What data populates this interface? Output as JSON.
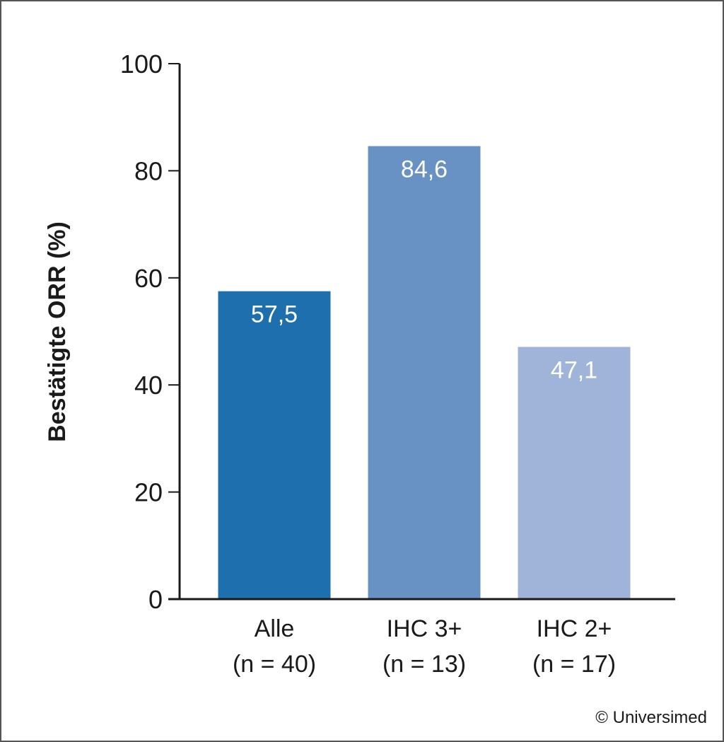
{
  "chart_data": {
    "type": "bar",
    "ylabel": "Bestätigte ORR (%)",
    "xlabel": "",
    "ylim": [
      0,
      100
    ],
    "yticks": [
      0,
      20,
      40,
      60,
      80,
      100
    ],
    "categories": [
      {
        "line1": "Alle",
        "line2": "(n = 40)"
      },
      {
        "line1": "IHC 3+",
        "line2": "(n = 13)"
      },
      {
        "line1": "IHC 2+",
        "line2": "(n = 17)"
      }
    ],
    "values": [
      57.5,
      84.6,
      47.1
    ],
    "value_labels": [
      "57,5",
      "84,6",
      "47,1"
    ],
    "colors": [
      "#1d70ad",
      "#6891c4",
      "#a0b4d9"
    ],
    "grid": false,
    "legend": "none"
  },
  "footer": {
    "copyright": "© Universimed"
  }
}
